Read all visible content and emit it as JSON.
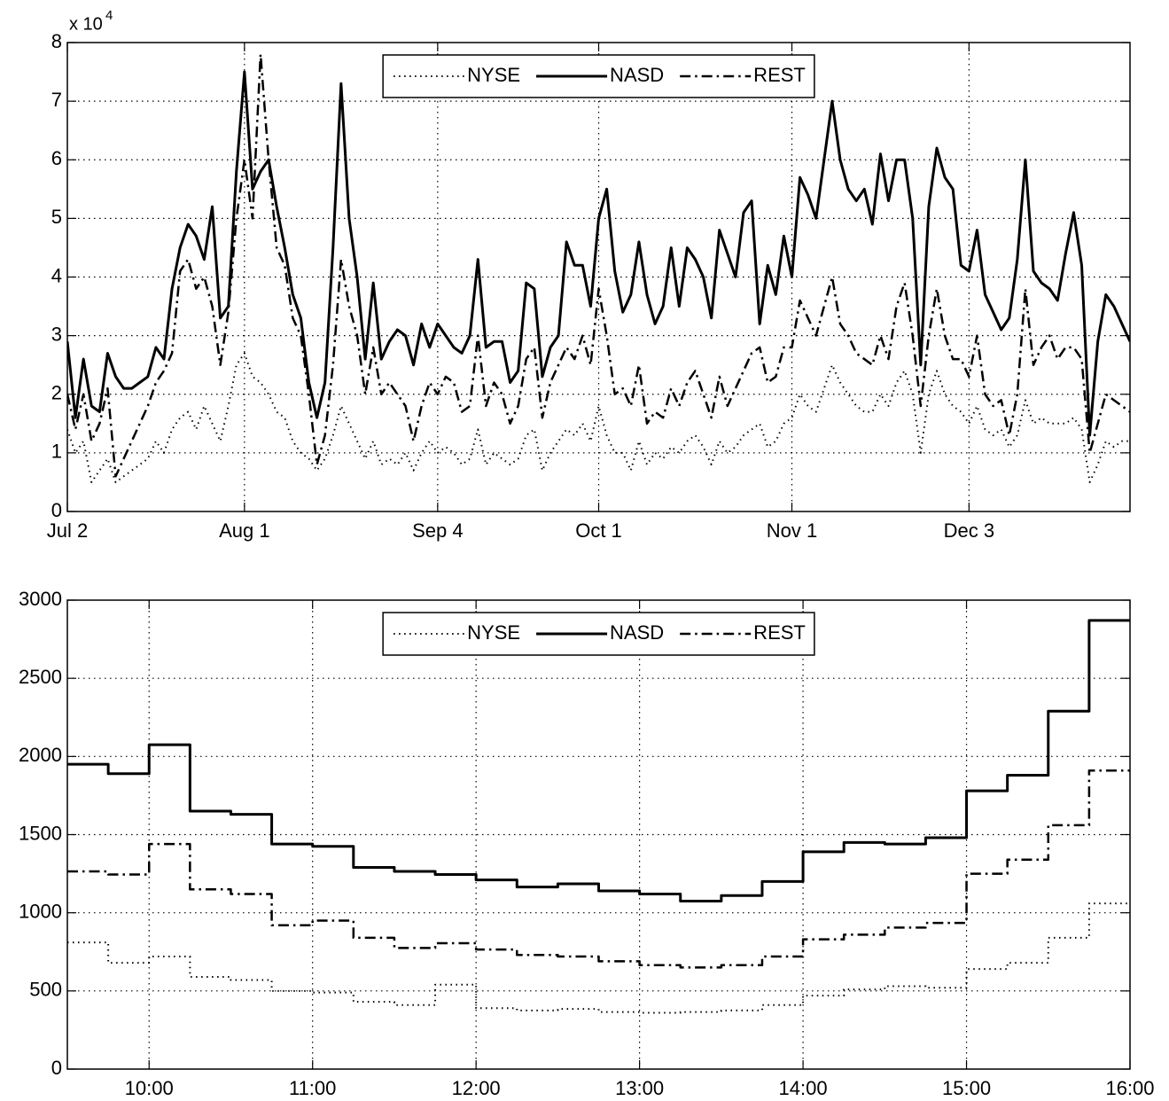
{
  "chart_data": [
    {
      "type": "line",
      "y_multiplier": {
        "base": "x 10",
        "exponent": "4"
      },
      "categories": [
        "Jul 2",
        null,
        null,
        null,
        null,
        null,
        null,
        null,
        null,
        null,
        null,
        null,
        null,
        null,
        null,
        null,
        null,
        null,
        null,
        null,
        null,
        null,
        "Aug 1",
        null,
        null,
        null,
        null,
        null,
        null,
        null,
        null,
        null,
        null,
        null,
        null,
        null,
        null,
        null,
        null,
        null,
        null,
        null,
        null,
        null,
        null,
        null,
        "Sep 4",
        null,
        null,
        null,
        null,
        null,
        null,
        null,
        null,
        null,
        null,
        null,
        null,
        null,
        null,
        null,
        null,
        null,
        null,
        null,
        "Oct 1",
        null,
        null,
        null,
        null,
        null,
        null,
        null,
        null,
        null,
        null,
        null,
        null,
        null,
        null,
        null,
        null,
        null,
        null,
        null,
        null,
        null,
        null,
        null,
        "Nov 1",
        null,
        null,
        null,
        null,
        null,
        null,
        null,
        null,
        null,
        null,
        null,
        null,
        null,
        null,
        null,
        null,
        null,
        null,
        null,
        null,
        null,
        "Dec 3",
        null,
        null,
        null,
        null,
        null,
        null,
        null,
        null,
        null,
        null,
        null,
        null,
        null,
        null,
        null,
        null,
        null,
        null,
        null,
        null
      ],
      "series": [
        {
          "name": "NYSE",
          "color": "#000000",
          "dash": "dotted",
          "values": [
            1.4,
            1.0,
            1.2,
            0.5,
            0.7,
            0.9,
            0.5,
            0.6,
            0.7,
            0.8,
            0.9,
            1.2,
            1.0,
            1.4,
            1.6,
            1.7,
            1.4,
            1.8,
            1.5,
            1.2,
            1.8,
            2.5,
            2.7,
            2.3,
            2.2,
            2.0,
            1.7,
            1.6,
            1.2,
            1.0,
            0.9,
            0.7,
            0.9,
            1.3,
            1.8,
            1.5,
            1.2,
            0.9,
            1.2,
            0.8,
            0.9,
            0.8,
            1.0,
            0.7,
            1.0,
            1.2,
            1.0,
            1.1,
            1.0,
            0.8,
            0.9,
            1.4,
            0.8,
            1.0,
            0.9,
            0.8,
            0.9,
            1.3,
            1.4,
            0.7,
            1.0,
            1.2,
            1.4,
            1.3,
            1.5,
            1.2,
            1.8,
            1.3,
            1.0,
            1.0,
            0.7,
            1.2,
            0.8,
            1.0,
            0.9,
            1.1,
            1.0,
            1.2,
            1.3,
            1.1,
            0.8,
            1.2,
            1.0,
            1.1,
            1.3,
            1.4,
            1.5,
            1.1,
            1.2,
            1.5,
            1.6,
            2.0,
            1.8,
            1.7,
            2.1,
            2.5,
            2.2,
            2.0,
            1.8,
            1.7,
            1.7,
            2.0,
            1.8,
            2.2,
            2.4,
            2.0,
            1.0,
            2.0,
            2.4,
            2.0,
            1.8,
            1.7,
            1.5,
            1.8,
            1.4,
            1.3,
            1.4,
            1.1,
            1.3,
            1.9,
            1.5,
            1.6,
            1.5,
            1.5,
            1.5,
            1.6,
            1.4,
            0.5,
            0.8,
            1.2,
            1.1,
            1.2,
            1.2
          ]
        },
        {
          "name": "NASD",
          "color": "#000000",
          "dash": "solid",
          "values": [
            2.9,
            1.6,
            2.6,
            1.8,
            1.7,
            2.7,
            2.3,
            2.1,
            2.1,
            2.2,
            2.3,
            2.8,
            2.6,
            3.8,
            4.5,
            4.9,
            4.7,
            4.3,
            5.2,
            3.3,
            3.5,
            5.8,
            7.5,
            5.5,
            5.8,
            6.0,
            5.2,
            4.5,
            3.7,
            3.3,
            2.2,
            1.6,
            2.2,
            4.5,
            7.3,
            5.0,
            4.0,
            2.6,
            3.9,
            2.6,
            2.9,
            3.1,
            3.0,
            2.5,
            3.2,
            2.8,
            3.2,
            3.0,
            2.8,
            2.7,
            3.0,
            4.3,
            2.8,
            2.9,
            2.9,
            2.2,
            2.4,
            3.9,
            3.8,
            2.3,
            2.8,
            3.0,
            4.6,
            4.2,
            4.2,
            3.5,
            5.0,
            5.5,
            4.1,
            3.4,
            3.7,
            4.6,
            3.7,
            3.2,
            3.5,
            4.5,
            3.5,
            4.5,
            4.3,
            4.0,
            3.3,
            4.8,
            4.4,
            4.0,
            5.1,
            5.3,
            3.2,
            4.2,
            3.7,
            4.7,
            4.0,
            5.7,
            5.4,
            5.0,
            6.0,
            7.0,
            6.0,
            5.5,
            5.3,
            5.5,
            4.9,
            6.1,
            5.3,
            6.0,
            6.0,
            5.0,
            2.5,
            5.2,
            6.2,
            5.7,
            5.5,
            4.2,
            4.1,
            4.8,
            3.7,
            3.4,
            3.1,
            3.3,
            4.3,
            6.0,
            4.1,
            3.9,
            3.8,
            3.6,
            4.4,
            5.1,
            4.2,
            1.3,
            2.9,
            3.7,
            3.5,
            3.2,
            2.9
          ]
        },
        {
          "name": "REST",
          "color": "#000000",
          "dash": "dashdot",
          "values": [
            2.0,
            1.4,
            2.0,
            1.2,
            1.5,
            2.1,
            0.6,
            0.9,
            1.2,
            1.5,
            1.8,
            2.2,
            2.4,
            2.7,
            4.1,
            4.3,
            3.8,
            4.0,
            3.5,
            2.5,
            3.4,
            5.0,
            6.0,
            5.0,
            7.8,
            6.0,
            4.5,
            4.2,
            3.3,
            3.0,
            2.0,
            0.8,
            1.3,
            2.5,
            4.3,
            3.5,
            3.0,
            2.0,
            2.8,
            2.0,
            2.2,
            2.0,
            1.8,
            1.2,
            1.8,
            2.2,
            2.0,
            2.3,
            2.2,
            1.7,
            1.8,
            3.0,
            1.8,
            2.2,
            2.0,
            1.5,
            1.8,
            2.6,
            2.8,
            1.6,
            2.2,
            2.5,
            2.8,
            2.6,
            3.0,
            2.5,
            3.8,
            3.0,
            2.0,
            2.1,
            1.8,
            2.5,
            1.5,
            1.7,
            1.6,
            2.1,
            1.8,
            2.2,
            2.4,
            2.0,
            1.6,
            2.3,
            1.8,
            2.1,
            2.4,
            2.7,
            2.8,
            2.2,
            2.3,
            2.8,
            2.8,
            3.6,
            3.3,
            3.0,
            3.5,
            4.0,
            3.2,
            3.0,
            2.7,
            2.6,
            2.5,
            3.0,
            2.6,
            3.5,
            3.9,
            3.0,
            1.8,
            3.0,
            3.8,
            3.0,
            2.6,
            2.6,
            2.3,
            3.0,
            2.0,
            1.8,
            1.9,
            1.3,
            2.0,
            3.8,
            2.5,
            2.8,
            3.0,
            2.6,
            2.8,
            2.8,
            2.6,
            1.0,
            1.5,
            2.0,
            1.9,
            1.8,
            1.7
          ]
        }
      ],
      "ylim": [
        0,
        8
      ],
      "yticks": [
        0,
        1,
        2,
        3,
        4,
        5,
        6,
        7,
        8
      ],
      "grid": true,
      "legend": "upper center"
    },
    {
      "type": "step",
      "x": [
        9.5,
        9.75,
        10,
        10.25,
        10.5,
        10.75,
        11,
        11.25,
        11.5,
        11.75,
        12,
        12.25,
        12.5,
        12.75,
        13,
        13.25,
        13.5,
        13.75,
        14,
        14.25,
        14.5,
        14.75,
        15,
        15.25,
        15.5,
        15.75
      ],
      "xlim": [
        9.5,
        16
      ],
      "xticks": [
        {
          "value": 10,
          "label": "10:00"
        },
        {
          "value": 11,
          "label": "11:00"
        },
        {
          "value": 12,
          "label": "12:00"
        },
        {
          "value": 13,
          "label": "13:00"
        },
        {
          "value": 14,
          "label": "14:00"
        },
        {
          "value": 15,
          "label": "15:00"
        },
        {
          "value": 16,
          "label": "16:00"
        }
      ],
      "series": [
        {
          "name": "NYSE",
          "color": "#000000",
          "dash": "dotted",
          "values": [
            810,
            680,
            720,
            590,
            570,
            500,
            490,
            430,
            410,
            540,
            390,
            375,
            385,
            365,
            360,
            365,
            375,
            410,
            470,
            510,
            530,
            520,
            640,
            680,
            840,
            1060
          ]
        },
        {
          "name": "NASD",
          "color": "#000000",
          "dash": "solid",
          "values": [
            1950,
            1890,
            2075,
            1650,
            1630,
            1440,
            1425,
            1290,
            1265,
            1245,
            1210,
            1165,
            1185,
            1140,
            1120,
            1075,
            1110,
            1200,
            1390,
            1450,
            1440,
            1480,
            1780,
            1880,
            2290,
            2870
          ]
        },
        {
          "name": "REST",
          "color": "#000000",
          "dash": "dashdot",
          "values": [
            1265,
            1245,
            1440,
            1150,
            1120,
            920,
            950,
            840,
            775,
            805,
            765,
            730,
            720,
            690,
            665,
            650,
            665,
            720,
            830,
            860,
            905,
            935,
            1250,
            1340,
            1560,
            1910
          ]
        }
      ],
      "ylim": [
        0,
        3000
      ],
      "yticks": [
        0,
        500,
        1000,
        1500,
        2000,
        2500,
        3000
      ],
      "grid": true,
      "legend": "upper center"
    }
  ]
}
